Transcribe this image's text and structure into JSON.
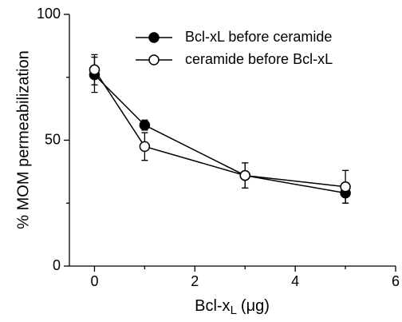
{
  "chart_data": {
    "type": "line",
    "xlabel": {
      "main": "Bcl-x",
      "sub": "L",
      "unit": "(μg)"
    },
    "ylabel": "% MOM permeabilization",
    "x": [
      0,
      1,
      3,
      5
    ],
    "series": [
      {
        "name": "Bcl-xL before ceramide",
        "color": "#000000",
        "marker": "filled",
        "values": [
          76,
          56,
          36,
          29
        ],
        "errors": [
          7,
          2,
          5,
          4
        ]
      },
      {
        "name": "ceramide before Bcl-xL",
        "color": "#000000",
        "marker": "open",
        "values": [
          78,
          47.5,
          36,
          31.5
        ],
        "errors": [
          6,
          5.5,
          5,
          6.5
        ]
      }
    ],
    "xlim": [
      -0.5,
      6
    ],
    "xticks": [
      0,
      2,
      4,
      6
    ],
    "xminor_ticks": [
      1,
      3,
      5
    ],
    "ylim": [
      0,
      100
    ],
    "yticks": [
      0,
      50,
      100
    ],
    "yminor_ticks": [
      25,
      75
    ],
    "grid": false,
    "legend": "upper right"
  }
}
